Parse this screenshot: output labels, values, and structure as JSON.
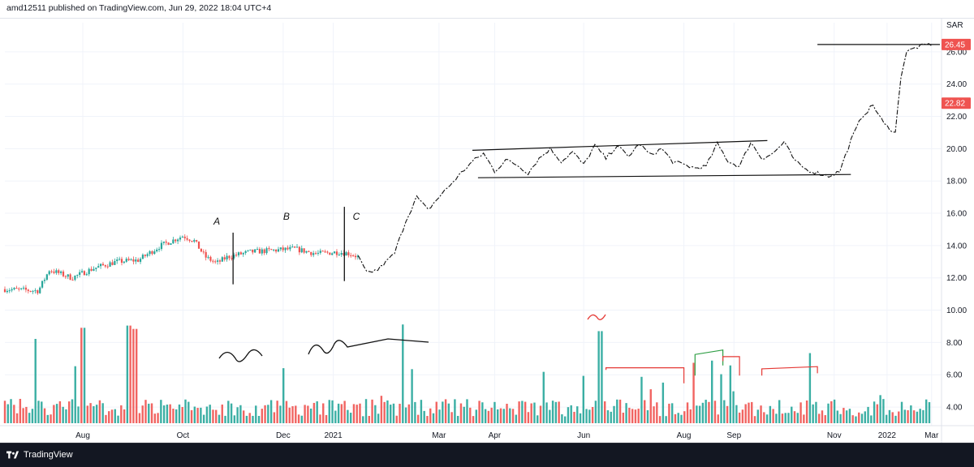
{
  "header": {
    "text": "amd12511 published on TradingView.com, Jun 29, 2022 18:04 UTC+4"
  },
  "footer": {
    "logo_text": "TradingView",
    "logo_icon": "tradingview-logo-icon"
  },
  "colors": {
    "up": "#26a69a",
    "down": "#ef5350",
    "ink": "#131722",
    "grid": "#f0f3fa",
    "annot_red": "#e53935",
    "annot_green": "#2e9e44"
  },
  "chart_data": {
    "type": "candlestick",
    "currency": "SAR",
    "ylim": [
      3.2,
      27.8
    ],
    "y_ticks": [
      "4.00",
      "6.00",
      "8.00",
      "10.00",
      "12.00",
      "14.00",
      "16.00",
      "18.00",
      "20.00",
      "22.00",
      "24.00",
      "26.00"
    ],
    "x_ticks": [
      "Aug",
      "Oct",
      "Dec",
      "2021",
      "Mar",
      "Apr",
      "Jun",
      "Aug",
      "Sep",
      "Nov",
      "2022",
      "Mar"
    ],
    "price_labels": [
      {
        "value": 26.45,
        "text": "26.45",
        "color": "#ef5350"
      },
      {
        "value": 22.82,
        "text": "22.82",
        "color": "#ef5350"
      }
    ],
    "price_path": [
      [
        0,
        11.3
      ],
      [
        6,
        11.2
      ],
      [
        8,
        12.5
      ],
      [
        12,
        12.0
      ],
      [
        16,
        12.6
      ],
      [
        20,
        13.0
      ],
      [
        24,
        13.1
      ],
      [
        28,
        14.0
      ],
      [
        32,
        14.6
      ],
      [
        34,
        14.3
      ],
      [
        36,
        13.3
      ],
      [
        38,
        12.9
      ],
      [
        40,
        13.3
      ],
      [
        44,
        13.6
      ],
      [
        48,
        13.7
      ],
      [
        52,
        13.8
      ],
      [
        56,
        13.5
      ],
      [
        60,
        13.6
      ],
      [
        62,
        13.5
      ],
      [
        63.5,
        13.3
      ],
      [
        65,
        12.3
      ],
      [
        67,
        12.5
      ],
      [
        70,
        13.5
      ],
      [
        72,
        15.5
      ],
      [
        74,
        17.0
      ],
      [
        76,
        16.2
      ],
      [
        78,
        17.0
      ],
      [
        82,
        18.5
      ],
      [
        84,
        19.2
      ],
      [
        86,
        19.7
      ],
      [
        88,
        18.6
      ],
      [
        90,
        19.3
      ],
      [
        92,
        19.0
      ],
      [
        94,
        18.5
      ],
      [
        96,
        19.4
      ],
      [
        98,
        20.0
      ],
      [
        100,
        19.2
      ],
      [
        102,
        19.8
      ],
      [
        104,
        19.0
      ],
      [
        106,
        20.2
      ],
      [
        108,
        19.4
      ],
      [
        110,
        20.2
      ],
      [
        112,
        19.5
      ],
      [
        114,
        20.3
      ],
      [
        116,
        19.6
      ],
      [
        118,
        20.0
      ],
      [
        120,
        19.2
      ],
      [
        122,
        19.0
      ],
      [
        124,
        18.8
      ],
      [
        126,
        18.9
      ],
      [
        128,
        20.3
      ],
      [
        130,
        19.2
      ],
      [
        132,
        18.9
      ],
      [
        134,
        20.4
      ],
      [
        136,
        19.4
      ],
      [
        138,
        19.7
      ],
      [
        140,
        20.4
      ],
      [
        142,
        19.2
      ],
      [
        144,
        18.7
      ],
      [
        146,
        18.5
      ],
      [
        148,
        18.3
      ],
      [
        150,
        18.6
      ],
      [
        152,
        20.5
      ],
      [
        154,
        22.0
      ],
      [
        156,
        22.7
      ],
      [
        158,
        21.5
      ],
      [
        160,
        21.0
      ],
      [
        161,
        24.5
      ],
      [
        162,
        26.0
      ],
      [
        164,
        26.3
      ],
      [
        166,
        26.45
      ]
    ],
    "volume": {
      "ylim": [
        0,
        9.5
      ],
      "unit": "relative"
    },
    "price_annotations": {
      "channel_top": [
        [
          84,
          19.9
        ],
        [
          137,
          20.5
        ]
      ],
      "channel_bottom": [
        [
          85,
          18.2
        ],
        [
          152,
          18.4
        ]
      ],
      "resistance": [
        [
          146,
          26.45
        ],
        [
          168,
          26.45
        ]
      ],
      "vertical_markers": [
        {
          "x": 41,
          "y_top": 14.8,
          "y_bottom": 11.6
        },
        {
          "x": 61,
          "y_top": 16.4,
          "y_bottom": 11.8
        }
      ],
      "letters": [
        {
          "text": "A",
          "x": 37.5,
          "y": 15.3
        },
        {
          "text": "B",
          "x": 50,
          "y": 15.6
        },
        {
          "text": "C",
          "x": 62.5,
          "y": 15.6
        }
      ]
    }
  }
}
